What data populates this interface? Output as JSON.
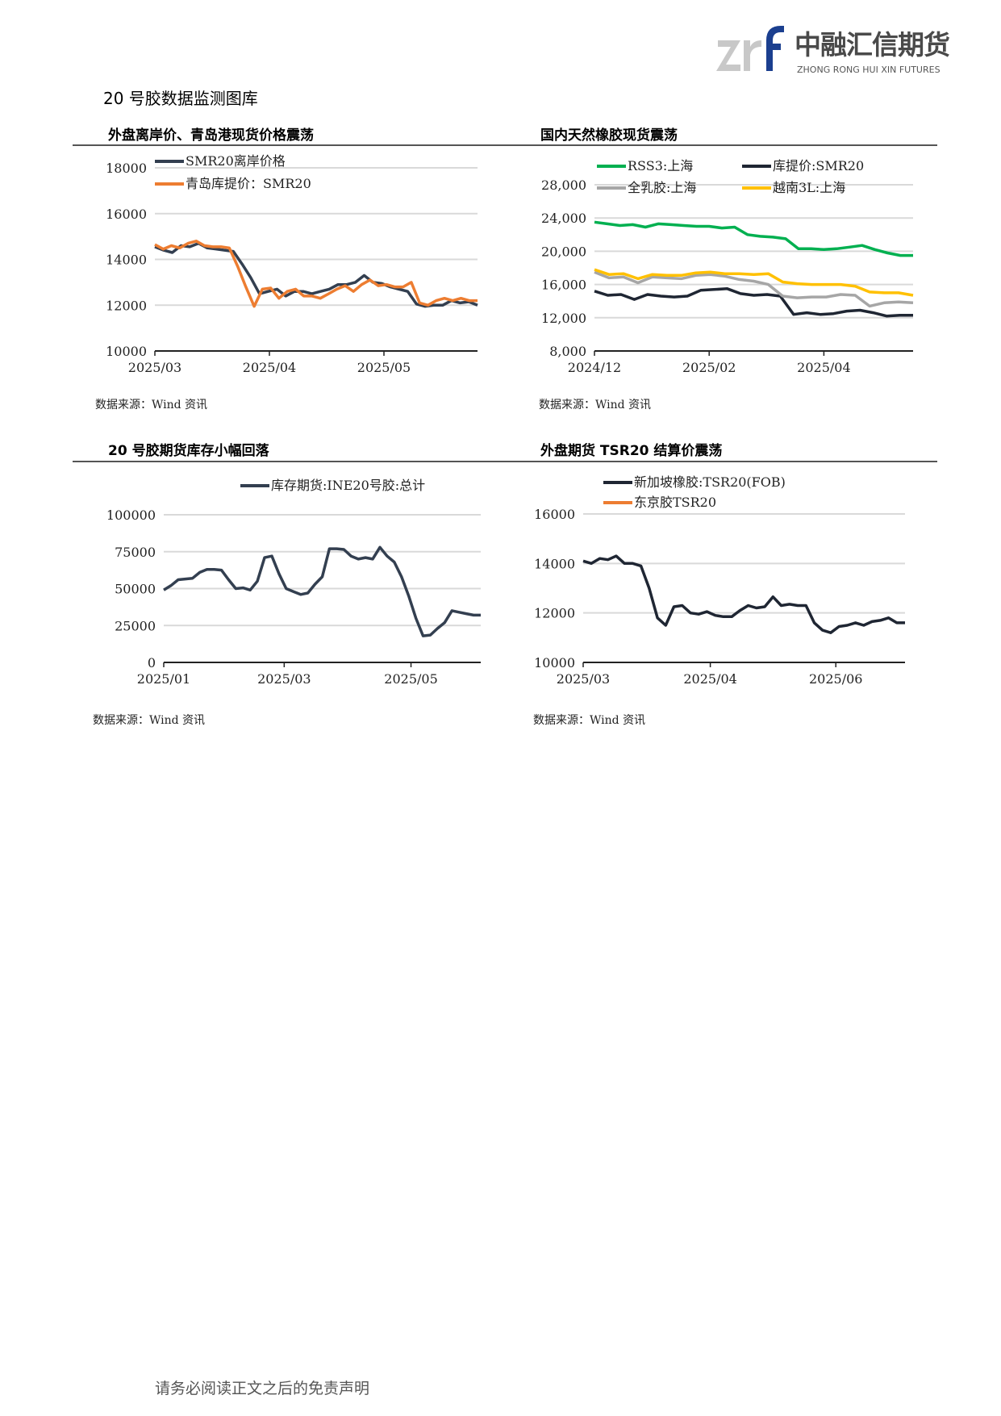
{
  "logo": {
    "mark_text": "zrf",
    "cn_name": "中融汇信期货",
    "en_name": "ZHONG RONG HUI XIN FUTURES",
    "gray": "#c8c8c8",
    "blue": "#1b3f8f"
  },
  "page_title": "20 号胶数据监测图库",
  "sections": [
    {
      "title": "外盘离岸价、青岛港现货价格震荡",
      "source": "数据来源：Wind 资讯"
    },
    {
      "title": "国内天然橡胶现货震荡",
      "source": "数据来源：Wind 资讯"
    },
    {
      "title": "20 号胶期货库存小幅回落",
      "source": "数据来源：Wind 资讯"
    },
    {
      "title": "外盘期货 TSR20 结算价震荡",
      "source": "数据来源：Wind 资讯"
    }
  ],
  "footer": "请务必阅读正文之后的免责声明",
  "chart_data": [
    {
      "type": "line",
      "title": "外盘离岸价、青岛港现货价格震荡",
      "ylim": [
        10000,
        18000
      ],
      "yticks": [
        10000,
        12000,
        14000,
        16000,
        18000
      ],
      "ytick_labels": [
        "10000",
        "12000",
        "14000",
        "16000",
        "18000"
      ],
      "xticks": [
        "2025/03",
        "2025/04",
        "2025/05"
      ],
      "xtick_pos": [
        0,
        0.355,
        0.71
      ],
      "grid": true,
      "legend": "top-left",
      "series": [
        {
          "name": "SMR20离岸价格",
          "color": "#333f50",
          "values": [
            14550,
            14400,
            14300,
            14600,
            14550,
            14700,
            14500,
            14450,
            14400,
            14350,
            13800,
            13200,
            12500,
            12600,
            12700,
            12400,
            12600,
            12600,
            12500,
            12600,
            12700,
            12900,
            12900,
            13000,
            13300,
            13000,
            12950,
            12800,
            12700,
            12600,
            12050,
            11950,
            12000,
            12000,
            12200,
            12100,
            12150,
            12000
          ]
        },
        {
          "name": "青岛库提价：SMR20",
          "color": "#ed7d31",
          "values": [
            14650,
            14450,
            14600,
            14500,
            14700,
            14800,
            14600,
            14550,
            14550,
            14500,
            13700,
            12800,
            11950,
            12700,
            12750,
            12300,
            12600,
            12700,
            12400,
            12400,
            12300,
            12500,
            12700,
            12850,
            12600,
            12900,
            13100,
            12850,
            12900,
            12800,
            12800,
            13000,
            12100,
            12000,
            12200,
            12300,
            12200,
            12300,
            12200,
            12200
          ]
        }
      ]
    },
    {
      "type": "line",
      "title": "国内天然橡胶现货震荡",
      "ylim": [
        8000,
        30000
      ],
      "yticks": [
        8000,
        12000,
        16000,
        20000,
        24000,
        28000
      ],
      "ytick_labels": [
        "8,000",
        "12,000",
        "16,000",
        "20,000",
        "24,000",
        "28,000"
      ],
      "xticks": [
        "2024/12",
        "2025/02",
        "2025/04"
      ],
      "xtick_pos": [
        0,
        0.36,
        0.72
      ],
      "grid": true,
      "legend": "top",
      "series": [
        {
          "name": "RSS3:上海",
          "color": "#00b050",
          "values": [
            23500,
            23300,
            23100,
            23200,
            22900,
            23300,
            23200,
            23100,
            23000,
            23000,
            22800,
            22900,
            22000,
            21800,
            21700,
            21500,
            20300,
            20300,
            20200,
            20300,
            20500,
            20700,
            20200,
            19800,
            19500,
            19500
          ]
        },
        {
          "name": "库提价:SMR20",
          "color": "#1f2633",
          "values": [
            15200,
            14700,
            14800,
            14200,
            14800,
            14600,
            14500,
            14600,
            15300,
            15400,
            15500,
            14900,
            14700,
            14800,
            14600,
            12400,
            12600,
            12400,
            12500,
            12800,
            12900,
            12600,
            12200,
            12300,
            12300
          ]
        },
        {
          "name": "全乳胶:上海",
          "color": "#a6a6a6",
          "values": [
            17500,
            16800,
            16900,
            16200,
            16900,
            16800,
            16700,
            17100,
            17200,
            17000,
            16600,
            16400,
            16000,
            14600,
            14400,
            14500,
            14500,
            14800,
            14700,
            13400,
            13800,
            13900,
            13800
          ]
        },
        {
          "name": "越南3L:上海",
          "color": "#ffc000",
          "values": [
            17800,
            17200,
            17300,
            16700,
            17200,
            17100,
            17100,
            17400,
            17500,
            17300,
            17300,
            17200,
            17300,
            16300,
            16100,
            16000,
            16000,
            16000,
            15800,
            15100,
            15000,
            15000,
            14700
          ]
        }
      ]
    },
    {
      "type": "line",
      "title": "20 号胶期货库存小幅回落",
      "ylim": [
        0,
        100000
      ],
      "yticks": [
        0,
        25000,
        50000,
        75000,
        100000
      ],
      "ytick_labels": [
        "0",
        "25000",
        "50000",
        "75000",
        "100000"
      ],
      "xticks": [
        "2025/01",
        "2025/03",
        "2025/05"
      ],
      "xtick_pos": [
        0,
        0.38,
        0.78
      ],
      "grid": true,
      "legend": "top",
      "series": [
        {
          "name": "库存期货:INE20号胶:总计",
          "color": "#333f50",
          "values": [
            49000,
            52000,
            56000,
            56500,
            57000,
            61000,
            63000,
            63000,
            62500,
            56000,
            50000,
            50500,
            49000,
            55000,
            71000,
            72000,
            60000,
            50000,
            48000,
            46000,
            47000,
            53000,
            58000,
            77000,
            77000,
            76500,
            72000,
            70000,
            71000,
            70000,
            78000,
            72000,
            68000,
            58000,
            45000,
            30000,
            18000,
            18500,
            23000,
            27000,
            35000,
            34000,
            33000,
            32000,
            32000
          ]
        }
      ]
    },
    {
      "type": "line",
      "title": "外盘期货 TSR20 结算价震荡",
      "ylim": [
        10000,
        16000
      ],
      "yticks": [
        10000,
        12000,
        14000,
        16000
      ],
      "ytick_labels": [
        "10000",
        "12000",
        "14000",
        "16000"
      ],
      "xticks": [
        "2025/03",
        "2025/04",
        "2025/06"
      ],
      "xtick_pos": [
        0,
        0.395,
        0.785
      ],
      "grid": true,
      "legend": "top",
      "series": [
        {
          "name": "新加坡橡胶:TSR20(FOB)",
          "color": "#1f2633",
          "values": [
            14100,
            14000,
            14200,
            14150,
            14300,
            14000,
            14000,
            13900,
            13000,
            11800,
            11500,
            12250,
            12300,
            12000,
            11950,
            12050,
            11900,
            11850,
            11850,
            12100,
            12300,
            12200,
            12250,
            12650,
            12300,
            12350,
            12300,
            12300,
            11600,
            11300,
            11200,
            11450,
            11500,
            11600,
            11500,
            11650,
            11700,
            11800,
            11600,
            11600
          ]
        },
        {
          "name": "东京胶TSR20",
          "color": "#ed7d31",
          "values": []
        }
      ]
    }
  ]
}
